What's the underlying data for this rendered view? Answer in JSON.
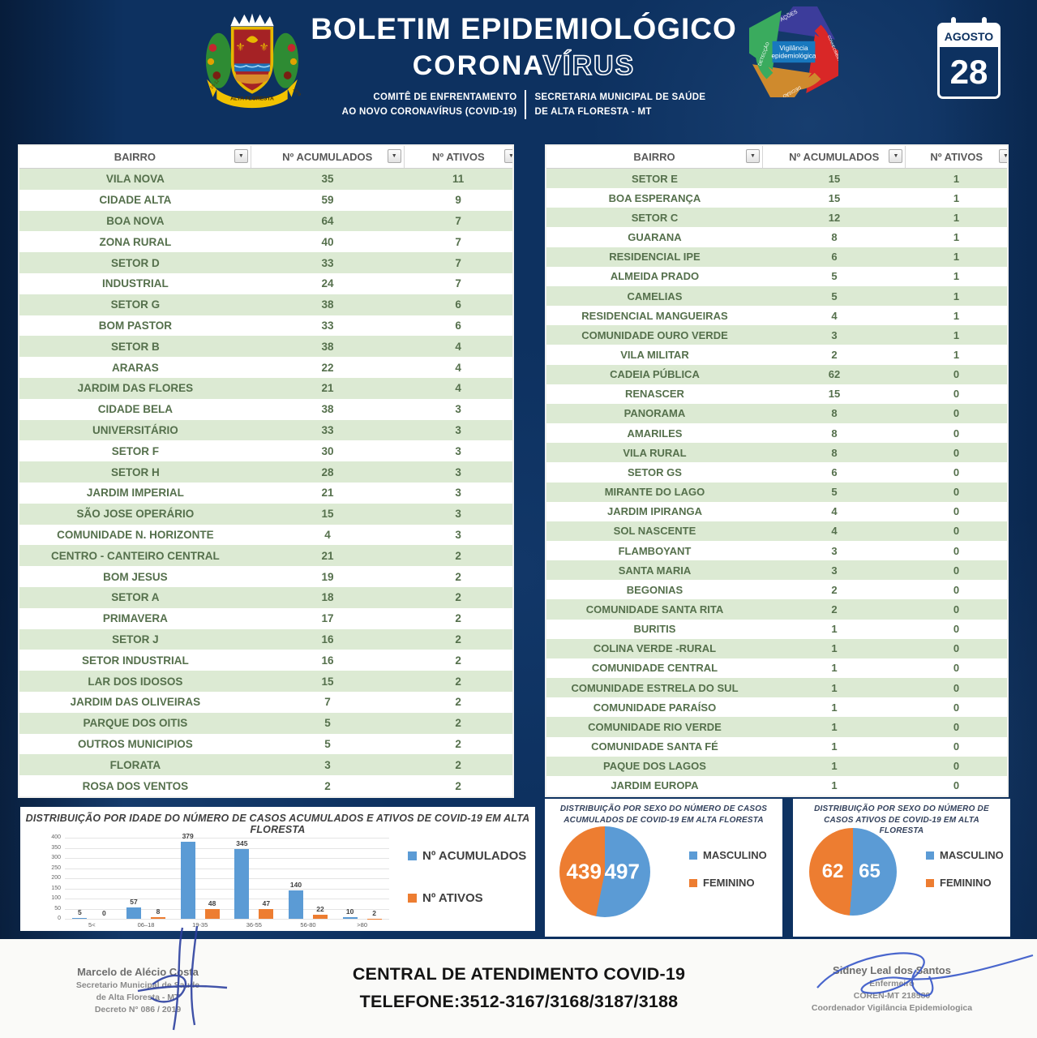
{
  "header": {
    "title": "BOLETIM EPIDEMIOLÓGICO",
    "subtitle_solid": "CORONA",
    "subtitle_outline": "VÍRUS",
    "committee_line1": "COMITÊ DE ENFRENTAMENTO",
    "committee_line2": "AO NOVO CORONAVÍRUS (COVID-19)",
    "secretary_line1": "SECRETARIA MUNICIPAL DE SAÚDE",
    "secretary_line2": "DE ALTA FLORESTA - MT",
    "crest": {
      "banner": "ALTA FLORESTA",
      "ribbon_left": "18-12",
      "ribbon_right": "1979"
    },
    "cycle": {
      "center_line1": "Vigilância",
      "center_line2": "epidemiológica",
      "labels": [
        "AÇÕES",
        "CONHECIMENTO",
        "DECISÃO",
        "DETECÇÃO"
      ]
    },
    "calendar_month": "AGOSTO",
    "calendar_day": "28"
  },
  "icons": {
    "filter_arrow": "▼"
  },
  "tables": {
    "columns": [
      "BAIRRO",
      "Nº ACUMULADOS",
      "Nº ATIVOS"
    ],
    "left_rows": [
      [
        "VILA NOVA",
        35,
        11
      ],
      [
        "CIDADE ALTA",
        59,
        9
      ],
      [
        "BOA NOVA",
        64,
        7
      ],
      [
        "ZONA RURAL",
        40,
        7
      ],
      [
        "SETOR D",
        33,
        7
      ],
      [
        "INDUSTRIAL",
        24,
        7
      ],
      [
        "SETOR G",
        38,
        6
      ],
      [
        "BOM PASTOR",
        33,
        6
      ],
      [
        "SETOR B",
        38,
        4
      ],
      [
        "ARARAS",
        22,
        4
      ],
      [
        "JARDIM DAS FLORES",
        21,
        4
      ],
      [
        "CIDADE BELA",
        38,
        3
      ],
      [
        "UNIVERSITÁRIO",
        33,
        3
      ],
      [
        "SETOR F",
        30,
        3
      ],
      [
        "SETOR H",
        28,
        3
      ],
      [
        "JARDIM IMPERIAL",
        21,
        3
      ],
      [
        "SÃO JOSE OPERÁRIO",
        15,
        3
      ],
      [
        "COMUNIDADE N. HORIZONTE",
        4,
        3
      ],
      [
        "CENTRO - CANTEIRO CENTRAL",
        21,
        2
      ],
      [
        "BOM JESUS",
        19,
        2
      ],
      [
        "SETOR A",
        18,
        2
      ],
      [
        "PRIMAVERA",
        17,
        2
      ],
      [
        "SETOR J",
        16,
        2
      ],
      [
        "SETOR INDUSTRIAL",
        16,
        2
      ],
      [
        "LAR DOS IDOSOS",
        15,
        2
      ],
      [
        "JARDIM DAS OLIVEIRAS",
        7,
        2
      ],
      [
        "PARQUE DOS OITIS",
        5,
        2
      ],
      [
        "OUTROS MUNICIPIOS",
        5,
        2
      ],
      [
        "FLORATA",
        3,
        2
      ],
      [
        "ROSA DOS VENTOS",
        2,
        2
      ]
    ],
    "right_rows": [
      [
        "SETOR E",
        15,
        1
      ],
      [
        "BOA ESPERANÇA",
        15,
        1
      ],
      [
        "SETOR C",
        12,
        1
      ],
      [
        "GUARANA",
        8,
        1
      ],
      [
        "RESIDENCIAL IPE",
        6,
        1
      ],
      [
        "ALMEIDA PRADO",
        5,
        1
      ],
      [
        "CAMELIAS",
        5,
        1
      ],
      [
        "RESIDENCIAL MANGUEIRAS",
        4,
        1
      ],
      [
        "COMUNIDADE OURO VERDE",
        3,
        1
      ],
      [
        "VILA MILITAR",
        2,
        1
      ],
      [
        "CADEIA PÚBLICA",
        62,
        0
      ],
      [
        "RENASCER",
        15,
        0
      ],
      [
        "PANORAMA",
        8,
        0
      ],
      [
        "AMARILES",
        8,
        0
      ],
      [
        "VILA RURAL",
        8,
        0
      ],
      [
        "SETOR GS",
        6,
        0
      ],
      [
        "MIRANTE DO LAGO",
        5,
        0
      ],
      [
        "JARDIM IPIRANGA",
        4,
        0
      ],
      [
        "SOL NASCENTE",
        4,
        0
      ],
      [
        "FLAMBOYANT",
        3,
        0
      ],
      [
        "SANTA MARIA",
        3,
        0
      ],
      [
        "BEGONIAS",
        2,
        0
      ],
      [
        "COMUNIDADE SANTA RITA",
        2,
        0
      ],
      [
        "BURITIS",
        1,
        0
      ],
      [
        "COLINA VERDE -RURAL",
        1,
        0
      ],
      [
        "COMUNIDADE CENTRAL",
        1,
        0
      ],
      [
        "COMUNIDADE ESTRELA DO SUL",
        1,
        0
      ],
      [
        "COMUNIDADE PARAÍSO",
        1,
        0
      ],
      [
        "COMUNIDADE RIO VERDE",
        1,
        0
      ],
      [
        "COMUNIDADE SANTA FÉ",
        1,
        0
      ],
      [
        "PAQUE DOS LAGOS",
        1,
        0
      ],
      [
        "JARDIM EUROPA",
        1,
        0
      ]
    ]
  },
  "chart_data": [
    {
      "type": "bar",
      "title": "DISTRIBUIÇÃO POR IDADE DO NÚMERO DE CASOS ACUMULADOS E ATIVOS DE COVID-19 EM ALTA FLORESTA",
      "categories": [
        "5<",
        "06–18",
        "19-35",
        "36-55",
        "56-80",
        ">80"
      ],
      "series": [
        {
          "name": "Nº ACUMULADOS",
          "color": "#5b9bd5",
          "values": [
            5,
            57,
            379,
            345,
            140,
            10
          ]
        },
        {
          "name": "Nº ATIVOS",
          "color": "#ed7d31",
          "values": [
            0,
            8,
            48,
            47,
            22,
            2
          ]
        }
      ],
      "xlabel": "",
      "ylabel": "",
      "ylim": [
        0,
        400
      ],
      "ytick_step": 50,
      "grid": true,
      "legend_position": "right"
    },
    {
      "type": "pie",
      "title": "DISTRIBUIÇÃO POR SEXO DO NÚMERO DE CASOS ACUMULADOS DE COVID-19 EM ALTA FLORESTA",
      "labels": [
        "MASCULINO",
        "FEMININO"
      ],
      "values": [
        497,
        439
      ],
      "colors": [
        "#5b9bd5",
        "#ed7d31"
      ],
      "legend_position": "right"
    },
    {
      "type": "pie",
      "title": "DISTRIBUIÇÃO POR SEXO DO NÚMERO DE CASOS ATIVOS DE COVID-19 EM ALTA FLORESTA",
      "labels": [
        "MASCULINO",
        "FEMININO"
      ],
      "values": [
        65,
        62
      ],
      "colors": [
        "#5b9bd5",
        "#ed7d31"
      ],
      "legend_position": "right"
    }
  ],
  "footer": {
    "left_signature": {
      "name": "Marcelo de Alécio Costa",
      "line2": "Secretario Municipal de Saude",
      "line3": "de Alta Floresta - MT",
      "line4": "Decreto N° 086 / 2019"
    },
    "center_line1": "CENTRAL  DE ATENDIMENTO COVID-19",
    "center_line2": "TELEFONE:3512-3167/3168/3187/3188",
    "right_signature": {
      "name": "Sidney Leal dos Santos",
      "line2": "Enfermeiro",
      "line3": "COREN-MT 218580",
      "line4": "Coordenador Vigilância Epidemiologica"
    }
  },
  "colors": {
    "navy": "#0d3160",
    "row_green": "#dcead3",
    "accent_blue": "#5b9bd5",
    "accent_orange": "#ed7d31"
  }
}
